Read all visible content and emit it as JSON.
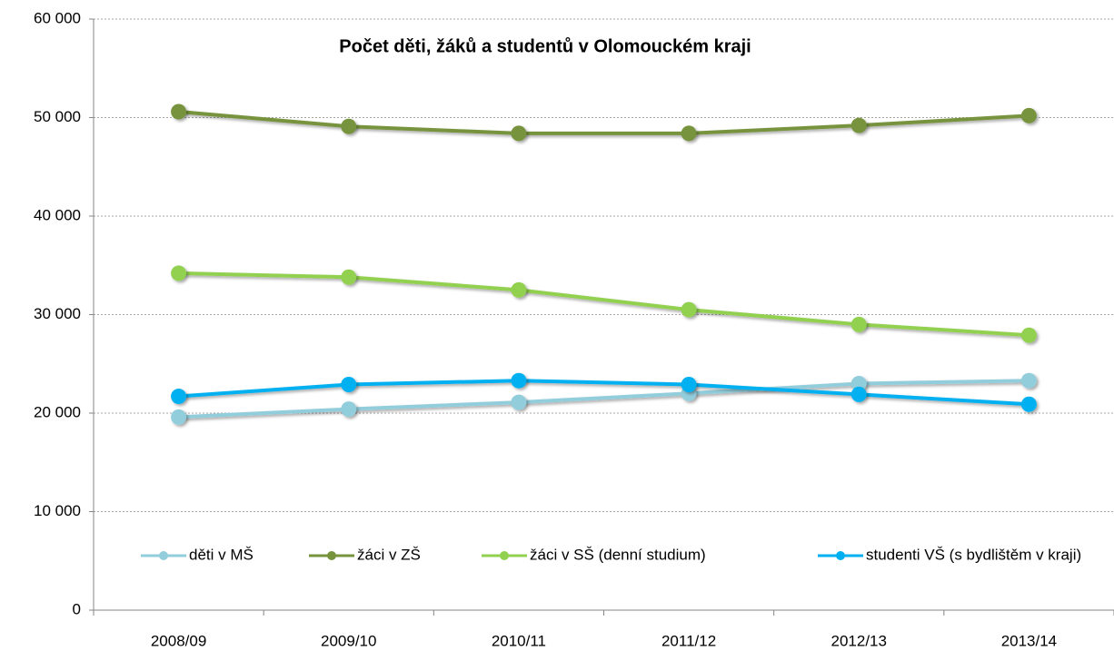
{
  "chart_data": {
    "type": "line",
    "title": "Počet děti, žáků a studentů  v Olomouckém kraji",
    "categories": [
      "2008/09",
      "2009/10",
      "2010/11",
      "2011/12",
      "2012/13",
      "2013/14"
    ],
    "series": [
      {
        "name": "děti v MŠ",
        "color": "#92cddc",
        "values": [
          19600,
          20400,
          21100,
          22000,
          23000,
          23300
        ]
      },
      {
        "name": "žáci v ZŠ",
        "color": "#77933c",
        "values": [
          50600,
          49100,
          48400,
          48400,
          49200,
          50200
        ]
      },
      {
        "name": "žáci v SŠ (denní studium)",
        "color": "#92d050",
        "values": [
          34200,
          33800,
          32500,
          30500,
          29000,
          27900
        ]
      },
      {
        "name": "studenti VŠ (s bydlištěm v kraji)",
        "color": "#00b0f0",
        "values": [
          21700,
          22900,
          23300,
          22900,
          21900,
          20900
        ]
      }
    ],
    "ylim": [
      0,
      60000
    ],
    "yticks": [
      0,
      {
        "value": 10000,
        "label": "10 000"
      },
      {
        "value": 20000,
        "label": "20 000"
      },
      {
        "value": 30000,
        "label": "30 000"
      },
      {
        "value": 40000,
        "label": "40 000"
      },
      {
        "value": 50000,
        "label": "50 000"
      },
      {
        "value": 60000,
        "label": "60 000"
      }
    ],
    "grid": true,
    "legend": "lower"
  }
}
